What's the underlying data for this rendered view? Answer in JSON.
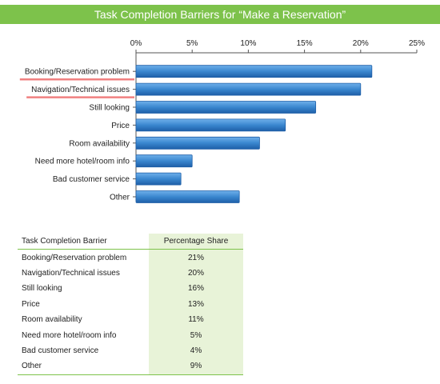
{
  "title": "Task Completion Barriers for “Make a Reservation”",
  "colors": {
    "header": "#7dc24b",
    "bar": "#3a87cf",
    "bar_dark": "#1e5fa8",
    "underline": "#f08080",
    "table_shade": "#e8f3d8"
  },
  "chart_data": {
    "type": "bar",
    "orientation": "horizontal",
    "title": "Task Completion Barriers for “Make a Reservation”",
    "categories": [
      "Booking/Reservation problem",
      "Navigation/Technical issues",
      "Still looking",
      "Price",
      "Room availability",
      "Need more hotel/room info",
      "Bad customer service",
      "Other"
    ],
    "values": [
      21,
      20,
      16,
      13.3,
      11,
      5,
      4,
      9.2
    ],
    "highlighted": [
      "Booking/Reservation problem",
      "Navigation/Technical issues"
    ],
    "xlim": [
      0,
      25
    ],
    "xticks": [
      0,
      5,
      10,
      15,
      20,
      25
    ],
    "xtick_labels": [
      "0%",
      "5%",
      "10%",
      "15%",
      "20%",
      "25%"
    ],
    "xaxis_position": "top",
    "grid": false,
    "legend": "none"
  },
  "table": {
    "headers": [
      "Task Completion Barrier",
      "Percentage Share"
    ],
    "rows": [
      [
        "Booking/Reservation problem",
        "21%"
      ],
      [
        "Navigation/Technical issues",
        "20%"
      ],
      [
        "Still looking",
        "16%"
      ],
      [
        "Price",
        "13%"
      ],
      [
        "Room availability",
        "11%"
      ],
      [
        "Need more hotel/room info",
        "5%"
      ],
      [
        "Bad customer service",
        "4%"
      ],
      [
        "Other",
        "9%"
      ]
    ]
  }
}
